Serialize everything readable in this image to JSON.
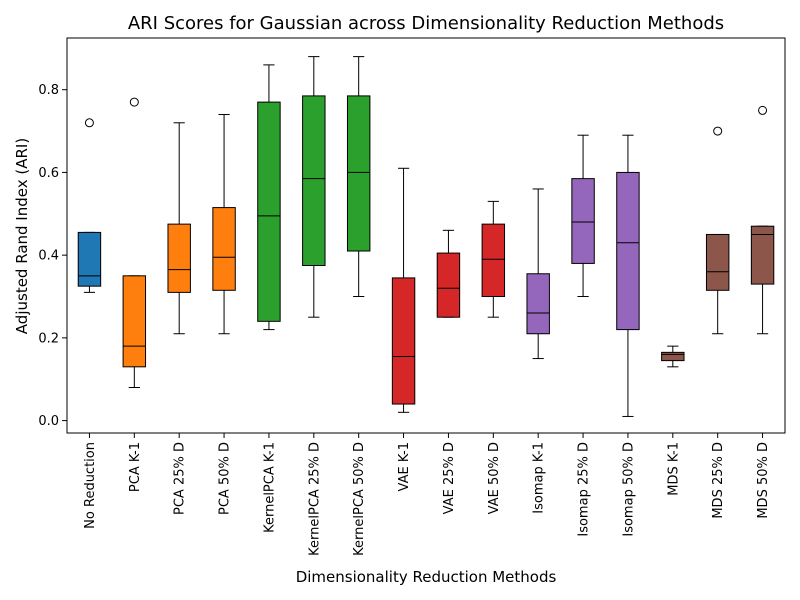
{
  "chart_data": {
    "type": "boxplot",
    "title": "ARI Scores for Gaussian across Dimensionality Reduction Methods",
    "xlabel": "Dimensionality Reduction Methods",
    "ylabel": "Adjusted Rand Index (ARI)",
    "ylim": [
      -0.03,
      0.925
    ],
    "yticks": [
      0.0,
      0.2,
      0.4,
      0.6,
      0.8
    ],
    "ytick_labels": [
      "0.0",
      "0.2",
      "0.4",
      "0.6",
      "0.8"
    ],
    "grid": false,
    "categories": [
      "No Reduction",
      "PCA K-1",
      "PCA 25% D",
      "PCA 50% D",
      "KernelPCA K-1",
      "KernelPCA 25% D",
      "KernelPCA 50% D",
      "VAE K-1",
      "VAE 25% D",
      "VAE 50% D",
      "Isomap K-1",
      "Isomap 25% D",
      "Isomap 50% D",
      "MDS K-1",
      "MDS 25% D",
      "MDS 50% D"
    ],
    "colors": [
      "#1f77b4",
      "#ff7f0e",
      "#ff7f0e",
      "#ff7f0e",
      "#2ca02c",
      "#2ca02c",
      "#2ca02c",
      "#d62728",
      "#d62728",
      "#d62728",
      "#9467bd",
      "#9467bd",
      "#9467bd",
      "#8c564b",
      "#8c564b",
      "#8c564b"
    ],
    "boxes": [
      {
        "whislo": 0.31,
        "q1": 0.325,
        "med": 0.35,
        "q3": 0.455,
        "whishi": 0.455,
        "fliers": [
          0.72
        ]
      },
      {
        "whislo": 0.08,
        "q1": 0.13,
        "med": 0.18,
        "q3": 0.35,
        "whishi": 0.35,
        "fliers": [
          0.77
        ]
      },
      {
        "whislo": 0.21,
        "q1": 0.31,
        "med": 0.365,
        "q3": 0.475,
        "whishi": 0.72,
        "fliers": []
      },
      {
        "whislo": 0.21,
        "q1": 0.315,
        "med": 0.395,
        "q3": 0.515,
        "whishi": 0.74,
        "fliers": []
      },
      {
        "whislo": 0.22,
        "q1": 0.24,
        "med": 0.495,
        "q3": 0.77,
        "whishi": 0.86,
        "fliers": []
      },
      {
        "whislo": 0.25,
        "q1": 0.375,
        "med": 0.585,
        "q3": 0.785,
        "whishi": 0.88,
        "fliers": []
      },
      {
        "whislo": 0.3,
        "q1": 0.41,
        "med": 0.6,
        "q3": 0.785,
        "whishi": 0.88,
        "fliers": []
      },
      {
        "whislo": 0.02,
        "q1": 0.04,
        "med": 0.155,
        "q3": 0.345,
        "whishi": 0.61,
        "fliers": []
      },
      {
        "whislo": 0.25,
        "q1": 0.25,
        "med": 0.32,
        "q3": 0.405,
        "whishi": 0.46,
        "fliers": []
      },
      {
        "whislo": 0.25,
        "q1": 0.3,
        "med": 0.39,
        "q3": 0.475,
        "whishi": 0.53,
        "fliers": []
      },
      {
        "whislo": 0.15,
        "q1": 0.21,
        "med": 0.26,
        "q3": 0.355,
        "whishi": 0.56,
        "fliers": []
      },
      {
        "whislo": 0.3,
        "q1": 0.38,
        "med": 0.48,
        "q3": 0.585,
        "whishi": 0.69,
        "fliers": []
      },
      {
        "whislo": 0.01,
        "q1": 0.22,
        "med": 0.43,
        "q3": 0.6,
        "whishi": 0.69,
        "fliers": []
      },
      {
        "whislo": 0.13,
        "q1": 0.145,
        "med": 0.16,
        "q3": 0.165,
        "whishi": 0.18,
        "fliers": []
      },
      {
        "whislo": 0.21,
        "q1": 0.315,
        "med": 0.36,
        "q3": 0.45,
        "whishi": 0.45,
        "fliers": [
          0.7
        ]
      },
      {
        "whislo": 0.21,
        "q1": 0.33,
        "med": 0.45,
        "q3": 0.47,
        "whishi": 0.47,
        "fliers": [
          0.75
        ]
      }
    ]
  }
}
